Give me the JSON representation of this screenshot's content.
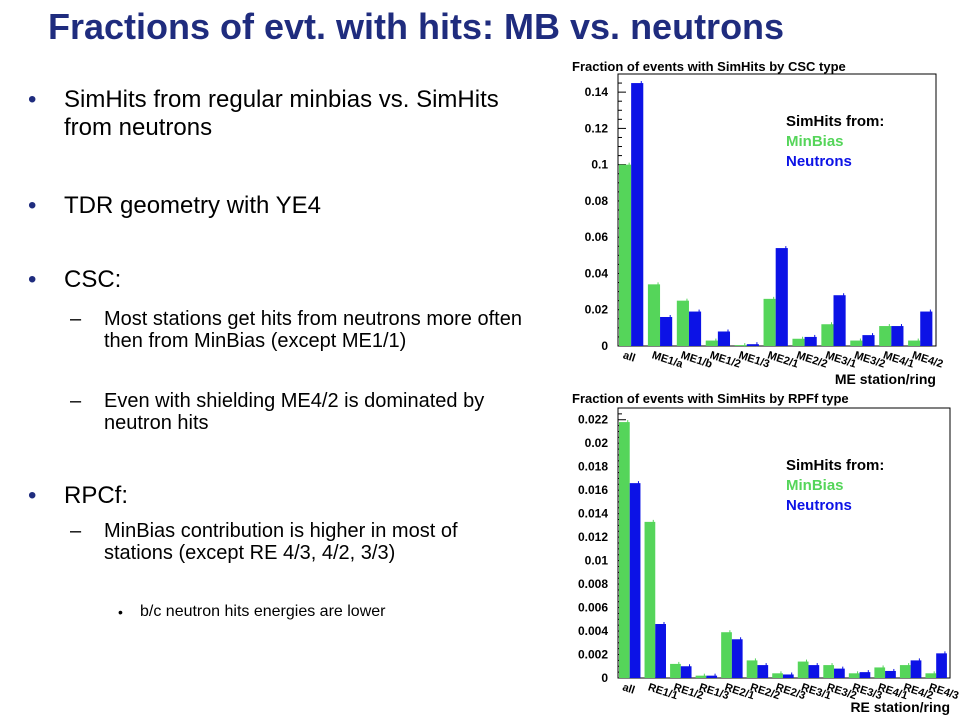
{
  "slide": {
    "title": "Fractions of evt. with hits: MB vs. neutrons",
    "bullets": {
      "b1": "SimHits from regular minbias vs. SimHits from neutrons",
      "b2": "TDR geometry with YE4",
      "b3": "CSC:",
      "b3_sub1": "Most stations get hits from neutrons more often then from MinBias (except ME1/1)",
      "b3_sub2": "Even with shielding ME4/2 is dominated by neutron hits",
      "b4": "RPCf:",
      "b4_sub1": "MinBias contribution is higher in most of stations (except RE 4/3, 4/2, 3/3)",
      "b4_sub1_sub": "b/c neutron hits energies are lower"
    }
  },
  "colors": {
    "title": "#1f2c7e",
    "minbias": "#55d55a",
    "neutrons": "#0c12e6",
    "text": "#000000"
  },
  "chart_data": [
    {
      "type": "bar",
      "title": "Fraction of events with SimHits by CSC type",
      "xlabel": "ME station/ring",
      "ylabel": "",
      "ylim": [
        0,
        0.15
      ],
      "yticks": [
        "0",
        "0.02",
        "0.04",
        "0.06",
        "0.08",
        "0.1",
        "0.12",
        "0.14"
      ],
      "yticks_values": [
        0,
        0.02,
        0.04,
        0.06,
        0.08,
        0.1,
        0.12,
        0.14
      ],
      "categories": [
        "all",
        "ME1/a",
        "ME1/b",
        "ME1/2",
        "ME1/3",
        "ME2/1",
        "ME2/2",
        "ME3/1",
        "ME3/2",
        "ME4/1",
        "ME4/2"
      ],
      "legend_title": "SimHits from:",
      "series": [
        {
          "name": "MinBias",
          "values": [
            0.1,
            0.034,
            0.025,
            0.003,
            0.0005,
            0.026,
            0.004,
            0.012,
            0.003,
            0.011,
            0.003
          ]
        },
        {
          "name": "Neutrons",
          "values": [
            0.145,
            0.016,
            0.019,
            0.008,
            0.001,
            0.054,
            0.005,
            0.028,
            0.006,
            0.011,
            0.019
          ]
        }
      ]
    },
    {
      "type": "bar",
      "title": "Fraction of events with SimHits by RPFf type",
      "xlabel": "RE station/ring",
      "ylabel": "",
      "ylim": [
        0,
        0.023
      ],
      "yticks": [
        "0",
        "0.002",
        "0.004",
        "0.006",
        "0.008",
        "0.01",
        "0.012",
        "0.014",
        "0.016",
        "0.018",
        "0.02",
        "0.022"
      ],
      "yticks_values": [
        0,
        0.002,
        0.004,
        0.006,
        0.008,
        0.01,
        0.012,
        0.014,
        0.016,
        0.018,
        0.02,
        0.022
      ],
      "categories": [
        "all",
        "RE1/1",
        "RE1/2",
        "RE1/3",
        "RE2/1",
        "RE2/2",
        "RE2/3",
        "RE3/1",
        "RE3/2",
        "RE3/3",
        "RE4/1",
        "RE4/2",
        "RE4/3"
      ],
      "legend_title": "SimHits from:",
      "series": [
        {
          "name": "MinBias",
          "values": [
            0.0218,
            0.0133,
            0.0012,
            0.0002,
            0.0039,
            0.0015,
            0.0004,
            0.0014,
            0.0011,
            0.0004,
            0.0009,
            0.0011,
            0.0004
          ]
        },
        {
          "name": "Neutrons",
          "values": [
            0.0166,
            0.0046,
            0.001,
            0.0002,
            0.0033,
            0.0011,
            0.0003,
            0.0011,
            0.0008,
            0.0005,
            0.0006,
            0.0015,
            0.0021
          ]
        }
      ]
    }
  ]
}
